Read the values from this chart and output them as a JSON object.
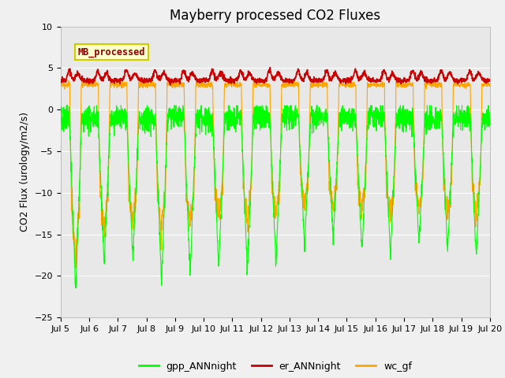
{
  "title": "Mayberry processed CO2 Fluxes",
  "ylabel": "CO2 Flux (urology/m2/s)",
  "ylim": [
    -25,
    10
  ],
  "yticks": [
    -25,
    -20,
    -15,
    -10,
    -5,
    0,
    5,
    10
  ],
  "n_days": 15,
  "points_per_day": 144,
  "gpp_color": "#00ff00",
  "er_color": "#cc0000",
  "wc_color": "#ffa500",
  "legend_label_color": "#8b0000",
  "legend_box_facecolor": "#ffffcc",
  "legend_box_edge": "#cccc00",
  "plot_bg_color": "#e8e8e8",
  "fig_bg_color": "#f0f0f0",
  "grid_color": "#ffffff",
  "title_fontsize": 12,
  "axis_fontsize": 9,
  "tick_fontsize": 8,
  "legend_fontsize": 9
}
